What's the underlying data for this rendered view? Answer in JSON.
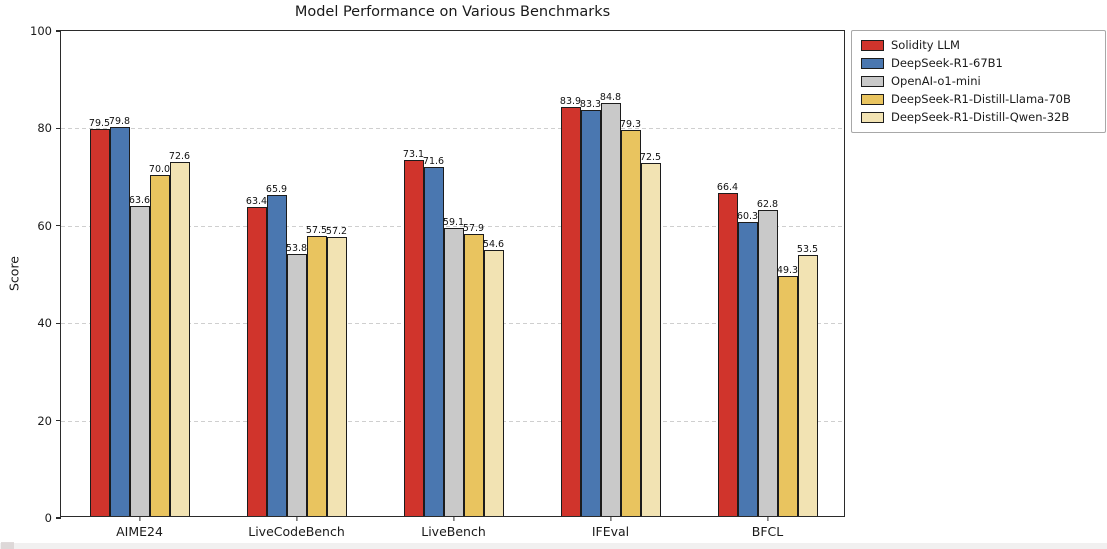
{
  "figure": {
    "title": "Model Performance on Various Benchmarks",
    "ylabel": "Score"
  },
  "chart_data": {
    "type": "bar",
    "title": "Model Performance on Various Benchmarks",
    "xlabel": "",
    "ylabel": "Score",
    "ylim": [
      0,
      100
    ],
    "yticks": [
      0,
      20,
      40,
      60,
      80,
      100
    ],
    "grid": "horizontal dashed light-gray",
    "legend_position": "outside upper-right",
    "value_labels": "one decimal above each bar",
    "categories": [
      "AIME24",
      "LiveCodeBench",
      "LiveBench",
      "IFEval",
      "BFCL"
    ],
    "series": [
      {
        "name": "Solidity LLM",
        "color": "#d0342c",
        "values": [
          79.5,
          63.4,
          73.1,
          83.9,
          66.4
        ]
      },
      {
        "name": "DeepSeek-R1-67B1",
        "color": "#4a77b0",
        "values": [
          79.8,
          65.9,
          71.6,
          83.3,
          60.3
        ]
      },
      {
        "name": "OpenAI-o1-mini",
        "color": "#c9c9c9",
        "values": [
          63.6,
          53.8,
          59.1,
          84.8,
          62.8
        ]
      },
      {
        "name": "DeepSeek-R1-Distill-Llama-70B",
        "color": "#e9c45f",
        "values": [
          70.0,
          57.5,
          57.9,
          79.3,
          49.3
        ]
      },
      {
        "name": "DeepSeek-R1-Distill-Qwen-32B",
        "color": "#f2e3b3",
        "values": [
          72.6,
          57.2,
          54.6,
          72.5,
          53.5
        ]
      }
    ],
    "bar_edge_color": "#1c1c1c"
  }
}
